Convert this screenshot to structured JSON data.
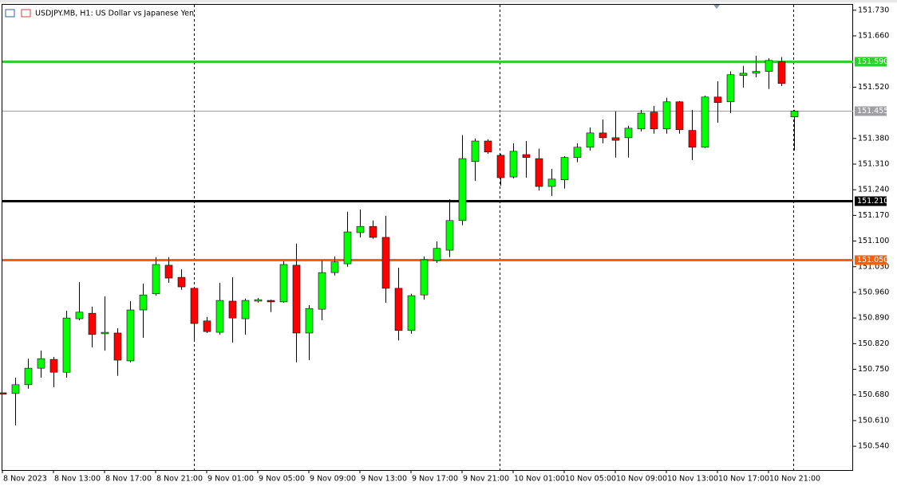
{
  "chart_data": {
    "type": "candlestick",
    "title": "USDJPY.MB, H1:  US Dollar vs Japanese Yen",
    "categories": [
      "8 Nov 2023",
      null,
      null,
      null,
      "8 Nov 13:00",
      null,
      null,
      null,
      "8 Nov 17:00",
      null,
      null,
      null,
      "8 Nov 21:00",
      null,
      null,
      null,
      "9 Nov 01:00",
      null,
      null,
      null,
      "9 Nov 05:00",
      null,
      null,
      null,
      "9 Nov 09:00",
      null,
      null,
      null,
      "9 Nov 13:00",
      null,
      null,
      null,
      "9 Nov 17:00",
      null,
      null,
      null,
      "9 Nov 21:00",
      null,
      null,
      null,
      "10 Nov 01:00",
      null,
      null,
      null,
      "10 Nov 05:00",
      null,
      null,
      null,
      "10 Nov 09:00",
      null,
      null,
      null,
      "10 Nov 13:00",
      null,
      null,
      null,
      "10 Nov 17:00",
      null,
      null,
      null,
      "10 Nov 21:00",
      null,
      null
    ],
    "open": [
      150.686,
      150.684,
      150.708,
      150.753,
      150.777,
      150.742,
      150.888,
      150.903,
      150.847,
      150.849,
      150.773,
      150.912,
      150.956,
      151.034,
      151.001,
      150.971,
      150.882,
      150.851,
      150.936,
      150.888,
      150.936,
      150.938,
      150.934,
      151.034,
      150.849,
      150.914,
      151.014,
      151.038,
      151.123,
      151.14,
      151.11,
      150.971,
      150.856,
      150.953,
      151.047,
      151.075,
      151.156,
      151.317,
      151.373,
      151.334,
      151.275,
      151.336,
      151.325,
      151.249,
      151.267,
      151.328,
      151.356,
      151.395,
      151.382,
      151.382,
      151.406,
      151.452,
      151.406,
      151.48,
      151.402,
      151.356,
      151.493,
      151.48,
      151.552,
      151.558,
      151.563,
      151.589,
      151.439
    ],
    "high": [
      150.686,
      150.727,
      150.779,
      150.801,
      150.784,
      150.91,
      150.988,
      150.921,
      150.949,
      150.862,
      150.936,
      150.984,
      151.056,
      151.056,
      151.023,
      150.975,
      150.893,
      150.986,
      151.001,
      150.943,
      150.945,
      150.94,
      151.045,
      151.093,
      150.925,
      151.047,
      151.058,
      151.18,
      151.186,
      151.156,
      151.169,
      151.027,
      150.956,
      151.058,
      151.099,
      151.214,
      151.389,
      151.38,
      151.378,
      151.338,
      151.367,
      151.373,
      151.352,
      151.297,
      151.332,
      151.367,
      151.41,
      151.432,
      151.454,
      151.415,
      151.458,
      151.469,
      151.491,
      151.482,
      151.458,
      151.497,
      151.536,
      151.563,
      151.578,
      151.606,
      151.599,
      151.602,
      151.458
    ],
    "low": [
      150.682,
      150.597,
      150.697,
      150.727,
      150.701,
      150.727,
      150.884,
      150.81,
      150.801,
      150.732,
      150.769,
      150.836,
      150.951,
      150.986,
      150.967,
      150.827,
      150.849,
      150.845,
      150.823,
      150.845,
      150.932,
      150.906,
      150.932,
      150.769,
      150.775,
      150.884,
      151.006,
      151.03,
      151.11,
      151.106,
      150.932,
      150.829,
      150.847,
      150.94,
      151.04,
      151.056,
      151.143,
      151.264,
      151.338,
      151.251,
      151.271,
      151.273,
      151.238,
      151.223,
      151.243,
      151.315,
      151.347,
      151.367,
      151.328,
      151.328,
      151.399,
      151.393,
      151.393,
      151.393,
      151.321,
      151.354,
      151.423,
      151.449,
      151.519,
      151.547,
      151.515,
      151.523,
      151.347
    ],
    "close": [
      150.682,
      150.708,
      150.753,
      150.779,
      150.742,
      150.89,
      150.906,
      150.845,
      150.851,
      150.775,
      150.912,
      150.953,
      151.036,
      150.999,
      150.975,
      150.875,
      150.853,
      150.938,
      150.89,
      150.938,
      150.94,
      150.934,
      151.036,
      150.849,
      150.916,
      151.014,
      151.043,
      151.125,
      151.14,
      151.11,
      150.971,
      150.856,
      150.951,
      151.049,
      151.08,
      151.156,
      151.325,
      151.373,
      151.343,
      151.273,
      151.345,
      151.328,
      151.249,
      151.269,
      151.328,
      151.356,
      151.395,
      151.382,
      151.375,
      151.408,
      151.449,
      151.406,
      151.48,
      151.404,
      151.356,
      151.493,
      151.478,
      151.554,
      151.558,
      151.563,
      151.593,
      151.53,
      151.455
    ],
    "up_color": "#00ff00",
    "down_color": "#ff0000",
    "ylim": [
      150.475,
      151.747
    ],
    "yticks": [
      {
        "value": 151.73,
        "label": "151.730"
      },
      {
        "value": 151.66,
        "label": "151.660"
      },
      {
        "value": 151.52,
        "label": "151.520"
      },
      {
        "value": 151.38,
        "label": "151.380"
      },
      {
        "value": 151.31,
        "label": "151.310"
      },
      {
        "value": 151.24,
        "label": "151.240"
      },
      {
        "value": 151.17,
        "label": "151.170"
      },
      {
        "value": 151.1,
        "label": "151.100"
      },
      {
        "value": 151.03,
        "label": "151.030"
      },
      {
        "value": 150.96,
        "label": "150.960"
      },
      {
        "value": 150.89,
        "label": "150.890"
      },
      {
        "value": 150.82,
        "label": "150.820"
      },
      {
        "value": 150.75,
        "label": "150.750"
      },
      {
        "value": 150.68,
        "label": "150.680"
      },
      {
        "value": 150.61,
        "label": "150.610"
      },
      {
        "value": 150.54,
        "label": "150.540"
      }
    ],
    "hlines": [
      {
        "value": 151.59,
        "label": "151.590",
        "color": "#32cd32"
      },
      {
        "value": 151.455,
        "label": "151.455",
        "color": "#a0a0a4"
      },
      {
        "value": 151.21,
        "label": "151.210",
        "color": "#000000"
      },
      {
        "value": 151.05,
        "label": "151.050",
        "color": "#ff5f00"
      }
    ]
  }
}
